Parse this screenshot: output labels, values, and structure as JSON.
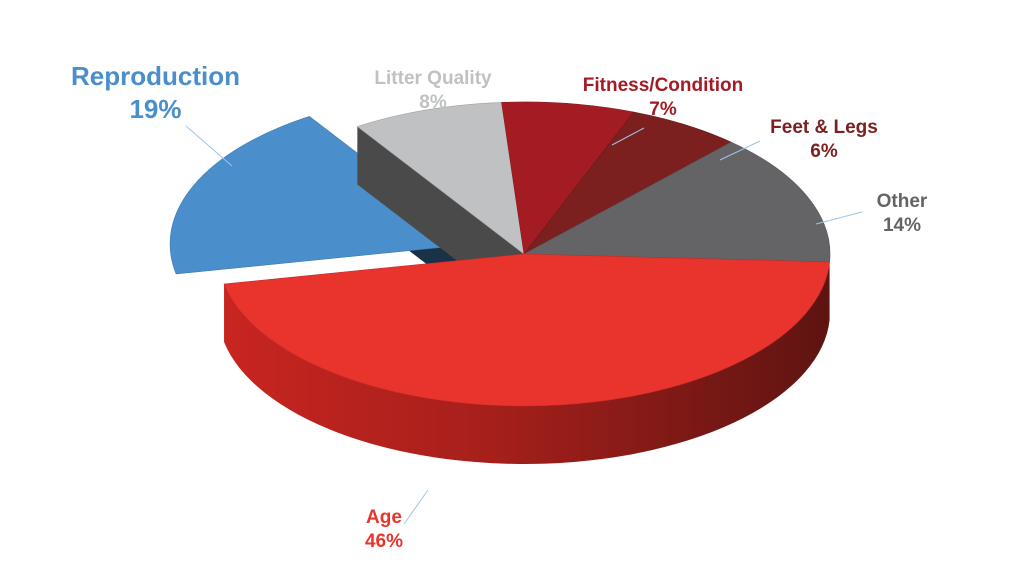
{
  "chart_data": {
    "type": "pie",
    "title": "",
    "slices": [
      {
        "label": "Age",
        "value": 46,
        "display": "46%",
        "color": "#e8342c",
        "exploded": false
      },
      {
        "label": "Reproduction",
        "value": 19,
        "display": "19%",
        "color": "#4a8fcb",
        "exploded": true
      },
      {
        "label": "Litter Quality",
        "value": 8,
        "display": "8%",
        "color": "#bfc1c2",
        "exploded": false
      },
      {
        "label": "Fitness/Condition",
        "value": 7,
        "display": "7%",
        "color": "#a31c24",
        "exploded": false
      },
      {
        "label": "Feet & Legs",
        "value": 6,
        "display": "6%",
        "color": "#7c1f1f",
        "exploded": false
      },
      {
        "label": "Other",
        "value": 14,
        "display": "14%",
        "color": "#646466",
        "exploded": false
      }
    ],
    "label_colors": {
      "Age": "#e8342c",
      "Reproduction": "#4a8fcb",
      "Litter Quality": "#bfc1c2",
      "Fitness/Condition": "#a31c24",
      "Feet & Legs": "#7c1f1f",
      "Other": "#646466"
    },
    "style": "3d"
  }
}
